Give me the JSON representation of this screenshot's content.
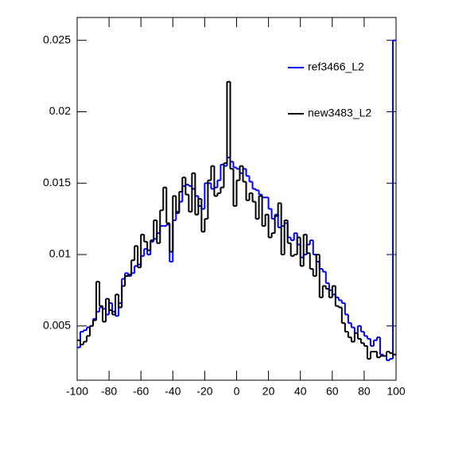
{
  "chart_data": {
    "type": "histogram",
    "bins": [
      -100,
      -98,
      -96,
      -94,
      -92,
      -90,
      -88,
      -86,
      -84,
      -82,
      -80,
      -78,
      -76,
      -74,
      -72,
      -70,
      -68,
      -66,
      -64,
      -62,
      -60,
      -58,
      -56,
      -54,
      -52,
      -50,
      -48,
      -46,
      -44,
      -42,
      -40,
      -38,
      -36,
      -34,
      -32,
      -30,
      -28,
      -26,
      -24,
      -22,
      -20,
      -18,
      -16,
      -14,
      -12,
      -10,
      -8,
      -6,
      -4,
      -2,
      0,
      2,
      4,
      6,
      8,
      10,
      12,
      14,
      16,
      18,
      20,
      22,
      24,
      26,
      28,
      30,
      32,
      34,
      36,
      38,
      40,
      42,
      44,
      46,
      48,
      50,
      52,
      54,
      56,
      58,
      60,
      62,
      64,
      66,
      68,
      70,
      72,
      74,
      76,
      78,
      80,
      82,
      84,
      86,
      88,
      90,
      92,
      94,
      96,
      98,
      100
    ],
    "series": [
      {
        "name": "ref3466_L2",
        "color": "#0000ff",
        "values": [
          0.0035,
          0.0046,
          0.0047,
          0.0049,
          0.005,
          0.0055,
          0.006,
          0.0063,
          0.0062,
          0.0058,
          0.0066,
          0.006,
          0.0057,
          0.0066,
          0.0083,
          0.0087,
          0.0085,
          0.0087,
          0.0092,
          0.0093,
          0.0099,
          0.0104,
          0.01,
          0.0109,
          0.0111,
          0.0115,
          0.012,
          0.012,
          0.0121,
          0.0095,
          0.0124,
          0.013,
          0.0137,
          0.0148,
          0.0149,
          0.0148,
          0.0146,
          0.0141,
          0.0134,
          0.0132,
          0.015,
          0.015,
          0.0146,
          0.0147,
          0.0152,
          0.0163,
          0.0162,
          0.0168,
          0.0165,
          0.0161,
          0.016,
          0.0157,
          0.016,
          0.0155,
          0.0151,
          0.0146,
          0.0145,
          0.0142,
          0.014,
          0.014,
          0.0132,
          0.0125,
          0.0128,
          0.0119,
          0.012,
          0.0122,
          0.0112,
          0.011,
          0.0115,
          0.0107,
          0.0098,
          0.01,
          0.0107,
          0.011,
          0.01,
          0.0095,
          0.009,
          0.0088,
          0.008,
          0.0075,
          0.0072,
          0.007,
          0.0068,
          0.0066,
          0.0058,
          0.0052,
          0.0049,
          0.0045,
          0.005,
          0.0046,
          0.0043,
          0.0041,
          0.0036,
          0.004,
          0.0042,
          0.003,
          0.0029,
          0.0026,
          0.0027,
          0.025
        ]
      },
      {
        "name": "new3483_L2",
        "color": "#000000",
        "values": [
          0.004,
          0.0037,
          0.0039,
          0.0043,
          0.005,
          0.0054,
          0.0081,
          0.0064,
          0.0053,
          0.0069,
          0.0061,
          0.0058,
          0.0072,
          0.0063,
          0.0078,
          0.0085,
          0.0086,
          0.0096,
          0.0106,
          0.0091,
          0.0114,
          0.0109,
          0.0103,
          0.011,
          0.0124,
          0.0108,
          0.0131,
          0.0147,
          0.0122,
          0.0102,
          0.0141,
          0.0129,
          0.0144,
          0.0154,
          0.0142,
          0.013,
          0.0157,
          0.0128,
          0.0139,
          0.0116,
          0.0125,
          0.0152,
          0.0162,
          0.0141,
          0.0143,
          0.0147,
          0.0164,
          0.0221,
          0.016,
          0.0134,
          0.0152,
          0.0162,
          0.0151,
          0.0138,
          0.0143,
          0.0137,
          0.0125,
          0.0141,
          0.012,
          0.0128,
          0.0112,
          0.0115,
          0.0127,
          0.0136,
          0.01,
          0.0124,
          0.0108,
          0.0099,
          0.01,
          0.0112,
          0.0092,
          0.0114,
          0.0101,
          0.009,
          0.0085,
          0.01,
          0.007,
          0.0078,
          0.0076,
          0.007,
          0.0078,
          0.0064,
          0.0063,
          0.0052,
          0.0046,
          0.0042,
          0.0039,
          0.0045,
          0.0041,
          0.0038,
          0.0036,
          0.0027,
          0.0032,
          0.0032,
          0.0028,
          0.0029,
          0.0029,
          0.0032,
          0.0031,
          0.003
        ]
      }
    ],
    "xlim": [
      -100,
      100
    ],
    "xticks": [
      -100,
      -80,
      -60,
      -40,
      -20,
      0,
      20,
      40,
      60,
      80,
      100
    ],
    "ylim": [
      0.0012,
      0.0266
    ],
    "yticks": [
      0.005,
      0.01,
      0.015,
      0.02,
      0.025
    ],
    "grid": false,
    "legend": "upper-right"
  }
}
